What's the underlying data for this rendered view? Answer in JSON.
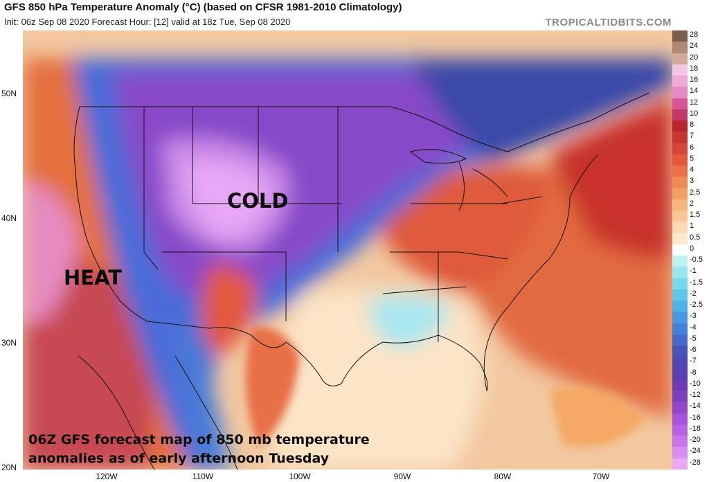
{
  "header": {
    "title": "GFS 850 hPa Temperature Anomaly (°C) (based on CFSR 1981-2010 Climatology)",
    "subtitle": "Init: 06z Sep 08 2020   Forecast Hour: [12]   valid at 18z Tue, Sep 08 2020",
    "brand": "TROPICALTIDBITS.COM"
  },
  "axes": {
    "lat_labels": [
      "50N",
      "40N",
      "30N",
      "20N"
    ],
    "lon_labels": [
      "120W",
      "110W",
      "100W",
      "90W",
      "80W",
      "70W"
    ]
  },
  "annotations": {
    "cold": "COLD",
    "heat": "HEAT",
    "caption_line1": "06Z GFS forecast map of 850 mb temperature",
    "caption_line2": "anomalies as of early afternoon Tuesday"
  },
  "colorbar": {
    "levels": [
      "28",
      "24",
      "20",
      "18",
      "16",
      "14",
      "12",
      "10",
      "8",
      "7",
      "6",
      "5",
      "4",
      "3",
      "2.5",
      "2",
      "1.5",
      "1",
      "0.5",
      "0",
      "-0.5",
      "-1",
      "-1.5",
      "-2",
      "-2.5",
      "-3",
      "-4",
      "-5",
      "-6",
      "-7",
      "-8",
      "-10",
      "-12",
      "-14",
      "-16",
      "-18",
      "-20",
      "-24",
      "-28"
    ],
    "colors": [
      "#7a5c4c",
      "#b08878",
      "#d2aa9c",
      "#f2c7e1",
      "#f0a8d6",
      "#e88ac8",
      "#d8569a",
      "#c23a6a",
      "#b8252c",
      "#c93531",
      "#d74438",
      "#e2583c",
      "#ea7044",
      "#f08a54",
      "#f4a064",
      "#f7b47c",
      "#f9c796",
      "#fbd8b0",
      "#fde9cc",
      "#ffffff",
      "#bdf2f2",
      "#98e6ee",
      "#79d8ec",
      "#5fc6ea",
      "#4fb2e8",
      "#4a98e2",
      "#4780da",
      "#4668cc",
      "#4854b8",
      "#5048b2",
      "#5a40b2",
      "#6c3cb6",
      "#7e40c0",
      "#9248cc",
      "#a454d8",
      "#b662e2",
      "#c874ea",
      "#d98cf0",
      "#eaa8f6"
    ],
    "highlight_colors": {
      "warm_max": "#b8252c",
      "cold_max": "#5a40b2",
      "neutral": "#ffffff"
    }
  }
}
